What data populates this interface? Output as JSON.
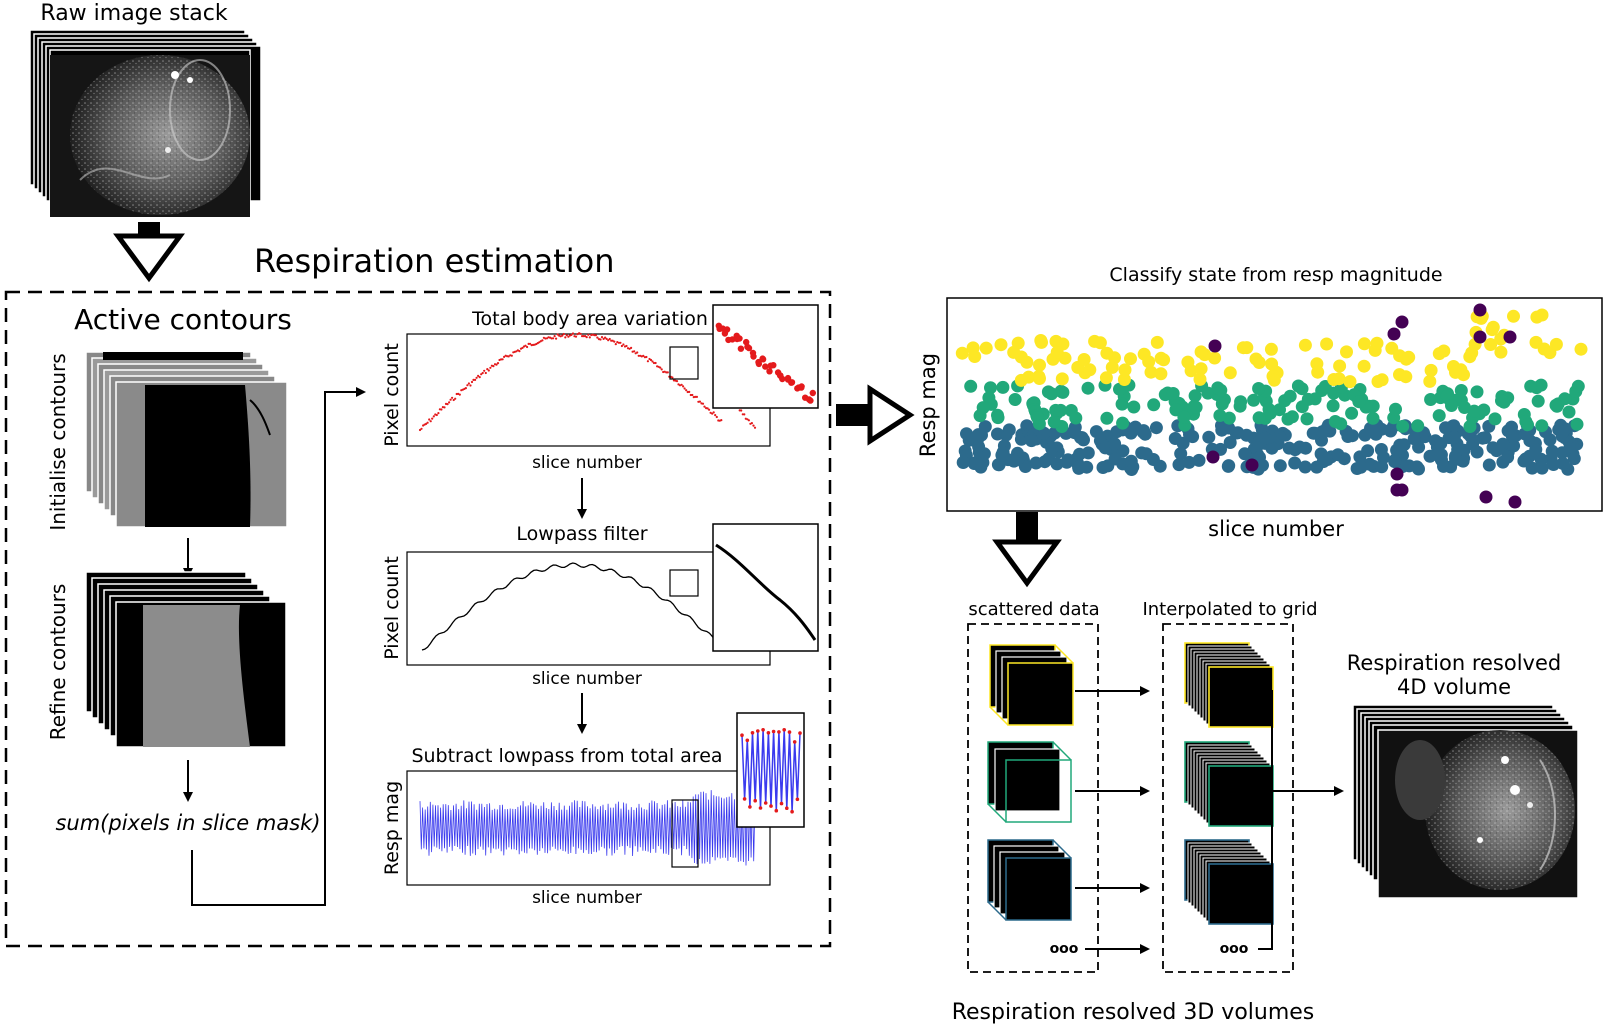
{
  "diagram": {
    "raw_stack_title": "Raw image stack",
    "respiration_estimation_title": "Respiration estimation",
    "active_contours_title": "Active contours",
    "initialise_label": "Initialise contours",
    "refine_label": "Refine contours",
    "sum_label": "sum(pixels in slice mask)",
    "panel1": {
      "title": "Total body area variation",
      "ylabel": "Pixel count",
      "xlabel": "slice number"
    },
    "panel2": {
      "title": "Lowpass filter",
      "ylabel": "Pixel count",
      "xlabel": "slice number"
    },
    "panel3": {
      "title": "Subtract lowpass from total area",
      "ylabel": "Resp mag",
      "xlabel": "slice number"
    },
    "classify": {
      "title": "Classify state from resp magnitude",
      "ylabel": "Resp mag",
      "xlabel": "slice number"
    },
    "scattered_label": "scattered data",
    "interpolated_label": "Interpolated to grid",
    "ellipsis": "ooo",
    "resolved4d_line1": "Respiration resolved",
    "resolved4d_line2": "4D volume",
    "resolved3d_label": "Respiration resolved 3D volumes"
  },
  "colors": {
    "yellow": "#fde725",
    "green": "#21a87a",
    "blue": "#2c6a8c",
    "purple": "#440154",
    "red": "#e41a1c",
    "signal_blue": "#3a3aee"
  }
}
